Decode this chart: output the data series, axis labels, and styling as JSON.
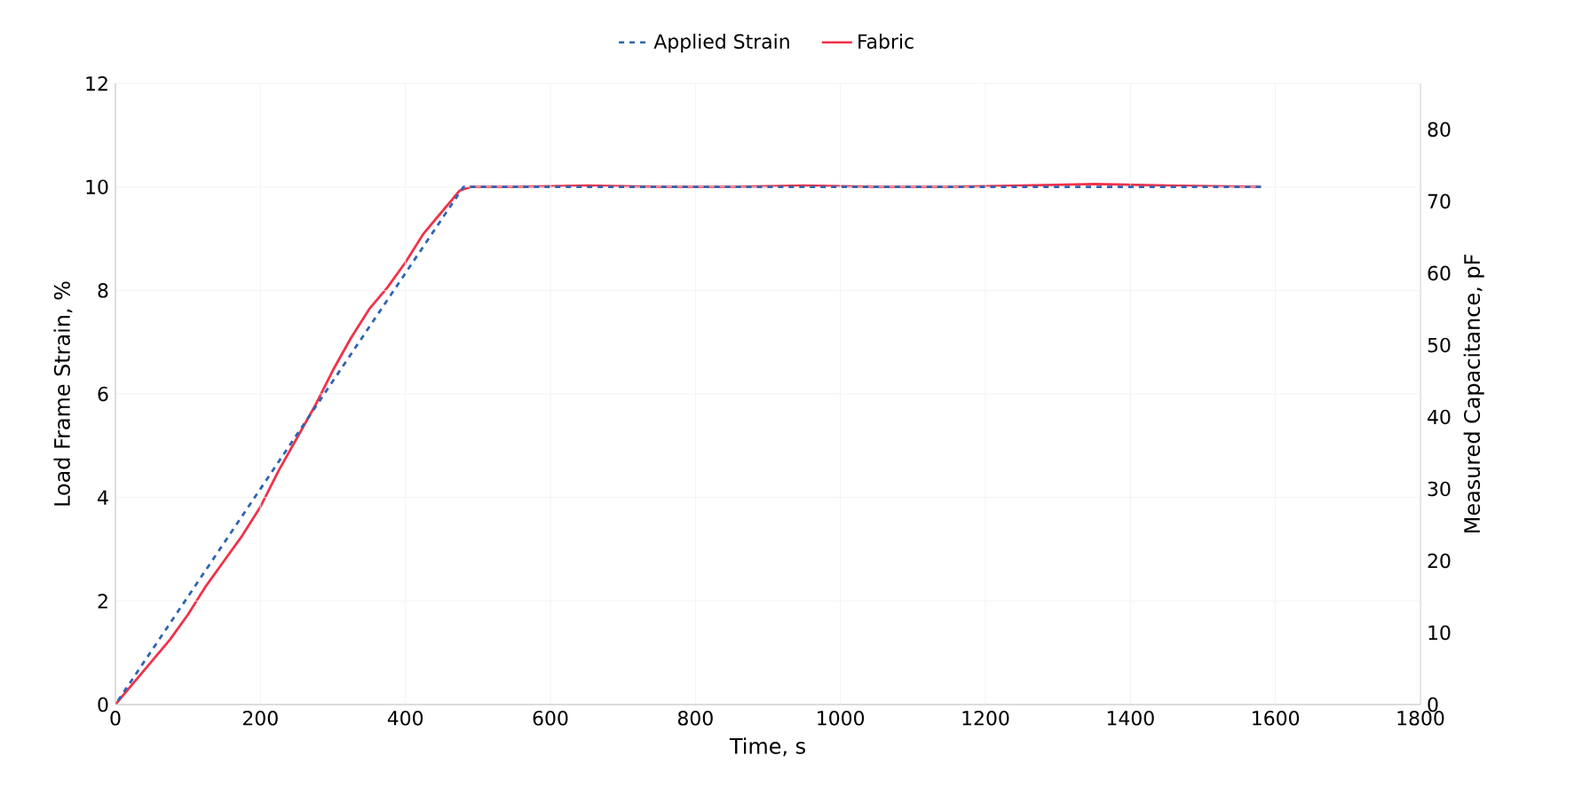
{
  "chart_data": {
    "type": "line",
    "xlabel": "Time, s",
    "ylabel": "Load Frame Strain, %",
    "y2label": "Measured Capacitance, pF",
    "xlim": [
      0,
      1800
    ],
    "xticks": [
      0,
      200,
      400,
      600,
      800,
      1000,
      1200,
      1400,
      1600,
      1800
    ],
    "ylim": [
      0,
      12
    ],
    "yticks": [
      0,
      2,
      4,
      6,
      8,
      10,
      12
    ],
    "y2lim": [
      0,
      86.4
    ],
    "y2ticks": [
      0,
      10,
      20,
      30,
      40,
      50,
      60,
      70,
      80
    ],
    "grid": true,
    "legend": "top",
    "series": [
      {
        "name": "Applied Strain",
        "color": "#2e64b4",
        "line_style": "dashed",
        "axis": "y",
        "x": [
          0,
          480,
          500,
          700,
          900,
          1100,
          1300,
          1500,
          1580
        ],
        "values": [
          0,
          10,
          10,
          10,
          10,
          10,
          10,
          10,
          10
        ]
      },
      {
        "name": "Fabric",
        "color": "#f0324b",
        "line_style": "solid",
        "axis": "y2",
        "x": [
          0,
          25,
          50,
          75,
          100,
          125,
          150,
          175,
          200,
          225,
          250,
          275,
          300,
          325,
          350,
          375,
          400,
          425,
          450,
          475,
          490,
          550,
          650,
          750,
          850,
          950,
          1050,
          1150,
          1250,
          1350,
          1450,
          1580
        ],
        "values": [
          0,
          3,
          6,
          9,
          12.5,
          16.5,
          20,
          23.5,
          27.5,
          32.5,
          37,
          41.5,
          46.5,
          51,
          55,
          58,
          61.5,
          65.5,
          68.5,
          71.5,
          72,
          72,
          72.2,
          72,
          72,
          72.2,
          72,
          72,
          72.2,
          72.4,
          72.2,
          72
        ]
      }
    ]
  }
}
